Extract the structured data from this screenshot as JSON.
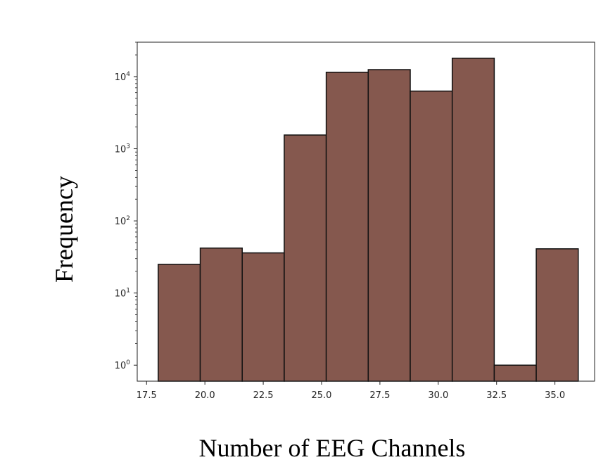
{
  "chart_data": {
    "type": "bar",
    "title": "",
    "xlabel": "Number of EEG Channels",
    "ylabel": "Frequency",
    "yscale": "log",
    "xlim": [
      17.1,
      36.7
    ],
    "ylim": [
      0.6,
      30000
    ],
    "grid": false,
    "legend": "none",
    "bar_color": "#85584e",
    "edge_color": "#111111",
    "x_ticks": [
      17.5,
      20.0,
      22.5,
      25.0,
      27.5,
      30.0,
      32.5,
      35.0
    ],
    "x_tick_labels": [
      "17.5",
      "20.0",
      "22.5",
      "25.0",
      "27.5",
      "30.0",
      "32.5",
      "35.0"
    ],
    "y_ticks": [
      {
        "value": 1,
        "base": "10",
        "exp": "0"
      },
      {
        "value": 10,
        "base": "10",
        "exp": "1"
      },
      {
        "value": 100,
        "base": "10",
        "exp": "2"
      },
      {
        "value": 1000,
        "base": "10",
        "exp": "3"
      },
      {
        "value": 10000,
        "base": "10",
        "exp": "4"
      }
    ],
    "bins": [
      {
        "x0": 18.0,
        "x1": 19.8,
        "value": 25
      },
      {
        "x0": 19.8,
        "x1": 21.6,
        "value": 42
      },
      {
        "x0": 21.6,
        "x1": 23.4,
        "value": 36
      },
      {
        "x0": 23.4,
        "x1": 25.2,
        "value": 1550
      },
      {
        "x0": 25.2,
        "x1": 27.0,
        "value": 11500
      },
      {
        "x0": 27.0,
        "x1": 28.8,
        "value": 12500
      },
      {
        "x0": 28.8,
        "x1": 30.6,
        "value": 6300
      },
      {
        "x0": 30.6,
        "x1": 32.4,
        "value": 18000
      },
      {
        "x0": 32.4,
        "x1": 34.2,
        "value": 1
      },
      {
        "x0": 34.2,
        "x1": 36.0,
        "value": 41
      }
    ]
  }
}
